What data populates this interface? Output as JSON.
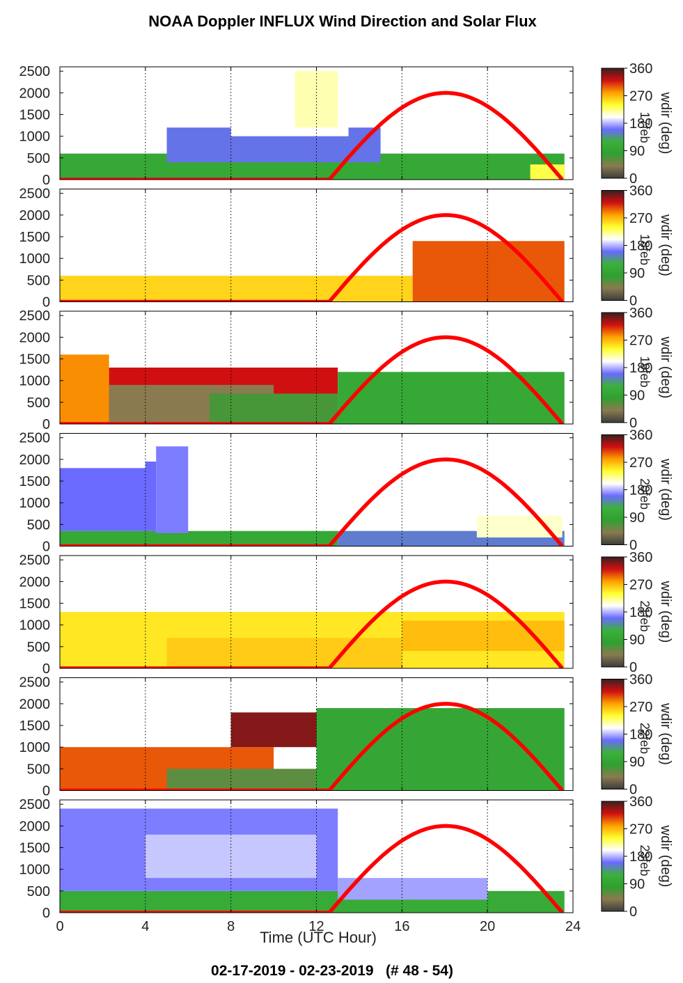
{
  "figure": {
    "title": "NOAA Doppler INFLUX Wind Direction and Solar Flux",
    "footer": "02-17-2019 - 02-23-2019   (# 48 - 54)",
    "xlabel": "Time (UTC Hour)"
  },
  "chart_data": {
    "type": "heatmap",
    "x_ticks": [
      0,
      4,
      8,
      12,
      16,
      20,
      24
    ],
    "x_range": [
      0,
      24
    ],
    "y_ticks": [
      0,
      500,
      1000,
      1500,
      2000,
      2500
    ],
    "y_range": [
      0,
      2600
    ],
    "colorbar": {
      "ticks": [
        0,
        90,
        180,
        270,
        360
      ],
      "label": "wdir (deg)",
      "colors": [
        "#3c3c3c",
        "#8a7a50",
        "#30a030",
        "#3cb03c",
        "#6a6aff",
        "#ffffff",
        "#ffff30",
        "#ffa000",
        "#d01010",
        "#3a2020"
      ]
    },
    "solar_flux": {
      "peak_hour": 18,
      "rise_hour": 12.6,
      "set_hour": 23.5,
      "peak_height": 2000,
      "color": "#ff0000"
    },
    "panels": [
      {
        "day_label": "17feb",
        "regions": [
          {
            "x0": 0,
            "x1": 23.6,
            "h": 600,
            "val": 100
          },
          {
            "x0": 5,
            "x1": 15,
            "y0": 400,
            "h": 800,
            "val": 155
          },
          {
            "x0": 8,
            "x1": 13.5,
            "y0": 1000,
            "h": 1000,
            "val": 200
          },
          {
            "x0": 11,
            "x1": 13,
            "y0": 1200,
            "h": 1300,
            "val": 215
          },
          {
            "x0": 22,
            "x1": 23.6,
            "h": 350,
            "val": 235
          }
        ]
      },
      {
        "day_label": "18feb",
        "regions": [
          {
            "x0": 0,
            "x1": 16.5,
            "h": 600,
            "val": 258
          },
          {
            "x0": 16.5,
            "x1": 23.6,
            "h": 1400,
            "val": 300
          }
        ]
      },
      {
        "day_label": "19feb",
        "regions": [
          {
            "x0": 0,
            "x1": 2.3,
            "h": 1600,
            "val": 285
          },
          {
            "x0": 2.3,
            "x1": 13,
            "h": 1300,
            "val": 320
          },
          {
            "x0": 2.3,
            "x1": 10,
            "h": 900,
            "val": 40
          },
          {
            "x0": 7,
            "x1": 13,
            "h": 700,
            "val": 70
          },
          {
            "x0": 13,
            "x1": 23.6,
            "h": 1200,
            "val": 100
          }
        ]
      },
      {
        "day_label": "20feb",
        "regions": [
          {
            "x0": 0,
            "x1": 13,
            "h": 350,
            "val": 100
          },
          {
            "x0": 0,
            "x1": 4.5,
            "y0": 350,
            "h": 1600,
            "val": 160
          },
          {
            "x0": 4.5,
            "x1": 6,
            "y0": 300,
            "h": 2000,
            "val": 165
          },
          {
            "x0": 0,
            "x1": 4,
            "y0": 1800,
            "h": 400,
            "val": 200
          },
          {
            "x0": 13,
            "x1": 23.6,
            "h": 350,
            "val": 150
          },
          {
            "x0": 19.5,
            "x1": 23.5,
            "y0": 200,
            "h": 500,
            "val": 210
          }
        ]
      },
      {
        "day_label": "21feb",
        "regions": [
          {
            "x0": 0,
            "x1": 23.6,
            "h": 1300,
            "val": 250
          },
          {
            "x0": 5,
            "x1": 16,
            "h": 700,
            "val": 262
          },
          {
            "x0": 16,
            "x1": 23.6,
            "y0": 400,
            "h": 700,
            "val": 268
          }
        ]
      },
      {
        "day_label": "22feb",
        "regions": [
          {
            "x0": 0,
            "x1": 10,
            "h": 1000,
            "val": 300
          },
          {
            "x0": 5,
            "x1": 15,
            "h": 500,
            "val": 60
          },
          {
            "x0": 8,
            "x1": 16,
            "y0": 1000,
            "h": 800,
            "val": 340
          },
          {
            "x0": 12,
            "x1": 23.6,
            "h": 1900,
            "val": 95
          }
        ]
      },
      {
        "day_label": "23feb",
        "regions": [
          {
            "x0": 0,
            "x1": 23.6,
            "h": 500,
            "val": 105
          },
          {
            "x0": 0,
            "x1": 13,
            "y0": 500,
            "h": 1900,
            "val": 165
          },
          {
            "x0": 4,
            "x1": 12,
            "y0": 800,
            "h": 1000,
            "val": 185
          },
          {
            "x0": 13,
            "x1": 20,
            "y0": 300,
            "h": 500,
            "val": 175
          }
        ]
      }
    ]
  }
}
